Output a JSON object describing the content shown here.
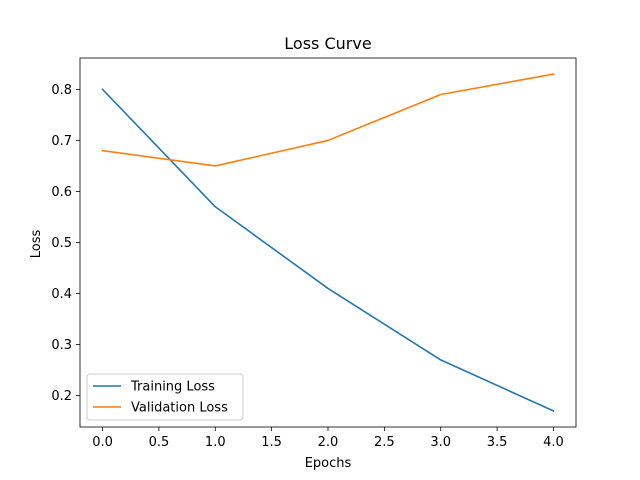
{
  "chart_data": {
    "type": "line",
    "title": "Loss Curve",
    "xlabel": "Epochs",
    "ylabel": "Loss",
    "x": [
      0,
      1,
      2,
      3,
      4
    ],
    "series": [
      {
        "name": "Training Loss",
        "color": "#1f77b4",
        "values": [
          0.8,
          0.57,
          0.41,
          0.27,
          0.17
        ]
      },
      {
        "name": "Validation Loss",
        "color": "#ff7f0e",
        "values": [
          0.68,
          0.65,
          0.7,
          0.79,
          0.83
        ]
      }
    ],
    "xlim": [
      -0.2,
      4.2
    ],
    "ylim": [
      0.1385,
      0.8615
    ],
    "xticks": [
      0.0,
      0.5,
      1.0,
      1.5,
      2.0,
      2.5,
      3.0,
      3.5,
      4.0
    ],
    "xtick_labels": [
      "0.0",
      "0.5",
      "1.0",
      "1.5",
      "2.0",
      "2.5",
      "3.0",
      "3.5",
      "4.0"
    ],
    "yticks": [
      0.2,
      0.3,
      0.4,
      0.5,
      0.6,
      0.7,
      0.8
    ],
    "ytick_labels": [
      "0.2",
      "0.3",
      "0.4",
      "0.5",
      "0.6",
      "0.7",
      "0.8"
    ],
    "grid": false,
    "legend_position": "lower-left"
  }
}
